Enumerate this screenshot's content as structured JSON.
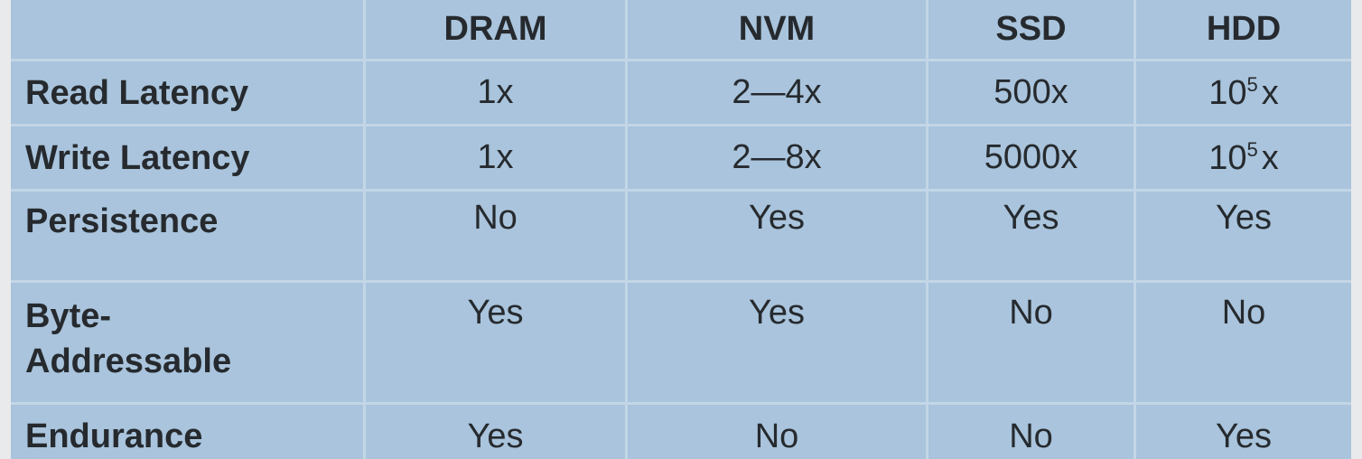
{
  "table": {
    "columns": [
      "",
      "DRAM",
      "NVM",
      "SSD",
      "HDD"
    ],
    "rows": [
      {
        "label": "Read Latency",
        "cells": [
          {
            "text": "1x"
          },
          {
            "text": "2—4x"
          },
          {
            "text": "500x"
          },
          {
            "base": "10",
            "sup": "5",
            "suffix": "x"
          }
        ]
      },
      {
        "label": "Write Latency",
        "cells": [
          {
            "text": "1x"
          },
          {
            "text": "2—8x"
          },
          {
            "text": "5000x"
          },
          {
            "base": "10",
            "sup": "5",
            "suffix": "x"
          }
        ]
      },
      {
        "label": "Persistence",
        "cells": [
          {
            "text": "No"
          },
          {
            "text": "Yes"
          },
          {
            "text": "Yes"
          },
          {
            "text": "Yes"
          }
        ]
      },
      {
        "label_lines": [
          "Byte-",
          "Addressable"
        ],
        "cells": [
          {
            "text": "Yes"
          },
          {
            "text": "Yes"
          },
          {
            "text": "No"
          },
          {
            "text": "No"
          }
        ]
      },
      {
        "label": "Endurance",
        "cells": [
          {
            "text": "Yes"
          },
          {
            "text": "No"
          },
          {
            "text": "No"
          },
          {
            "text": "Yes"
          }
        ]
      }
    ]
  },
  "colors": {
    "cell_background": "#a9c4dc",
    "grid_lines": "#c3d6e6",
    "text": "#262a2e",
    "page_background": "#e8eaec"
  }
}
